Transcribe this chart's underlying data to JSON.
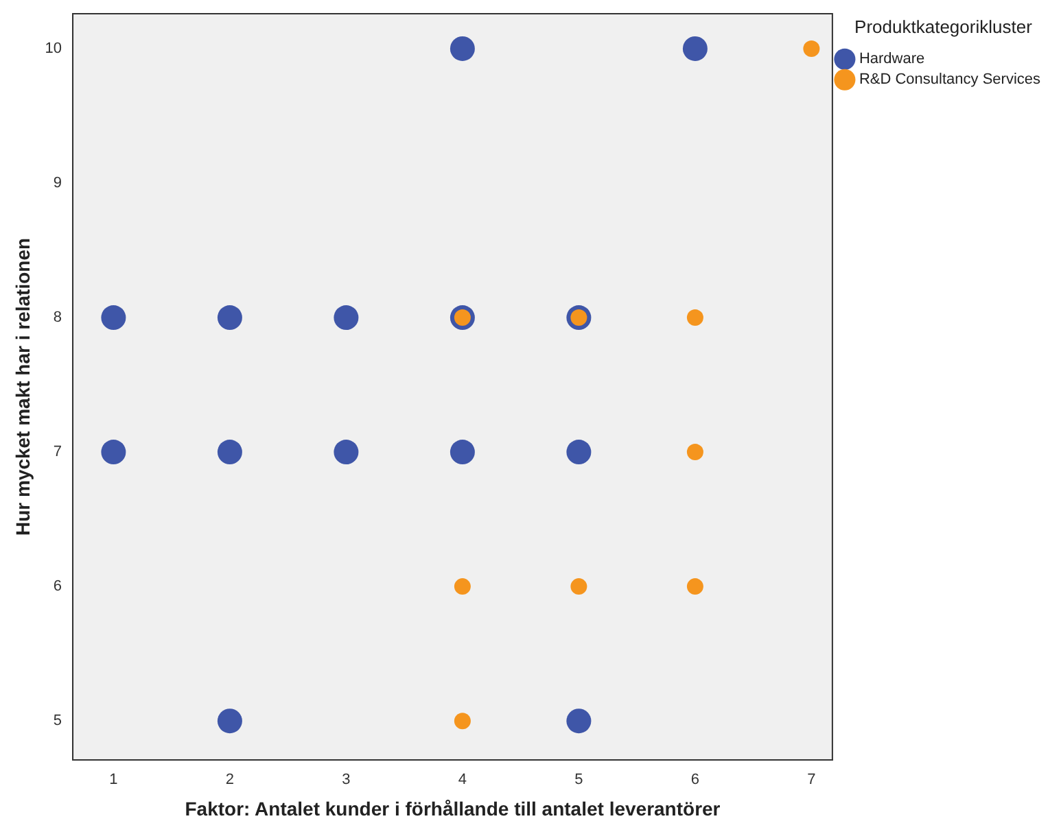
{
  "chart_data": {
    "type": "scatter",
    "xlabel": "Faktor: Antalet kunder i förhållande till antalet leverantörer",
    "ylabel": "Hur mycket makt har i relationen",
    "legend_title": "Produktkategorikluster",
    "legend": "top right",
    "grid": false,
    "marker": "circle",
    "xlim": [
      0.65,
      7.18
    ],
    "xticks": [
      1,
      2,
      3,
      4,
      5,
      6,
      7
    ],
    "ylim": [
      4.71,
      10.26
    ],
    "yticks": [
      5,
      6,
      7,
      8,
      9,
      10
    ],
    "series": [
      {
        "name": "Hardware",
        "color": "#3f56a8",
        "x": [
          4,
          6,
          1,
          2,
          3,
          4,
          5,
          1,
          2,
          3,
          4,
          5,
          2,
          5
        ],
        "values": [
          10,
          10,
          8,
          8,
          8,
          8,
          8,
          7,
          7,
          7,
          7,
          7,
          5,
          5
        ]
      },
      {
        "name": "R&D Consultancy Services",
        "color": "#f5951e",
        "x": [
          7,
          4,
          5,
          6,
          6,
          4,
          5,
          6,
          4
        ],
        "values": [
          10,
          8,
          8,
          8,
          7,
          6,
          6,
          6,
          5
        ]
      }
    ]
  }
}
